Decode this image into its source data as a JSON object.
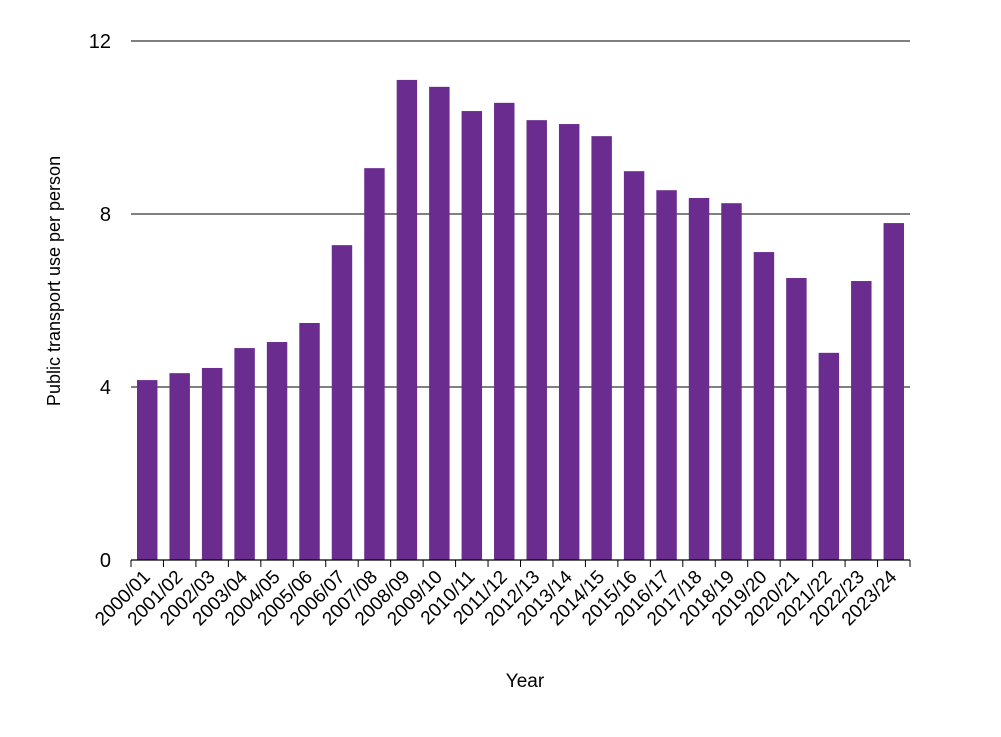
{
  "chart_data": {
    "type": "bar",
    "title": "",
    "xlabel": "Year",
    "ylabel": "Public transport use per person",
    "ylim": [
      0,
      12
    ],
    "yticks": [
      0,
      4,
      8,
      12
    ],
    "grid": true,
    "legend": null,
    "bar_color": "#6a2c8e",
    "categories": [
      "2000/01",
      "2001/02",
      "2002/03",
      "2003/04",
      "2004/05",
      "2005/06",
      "2006/07",
      "2007/08",
      "2008/09",
      "2009/10",
      "2010/11",
      "2011/12",
      "2012/13",
      "2013/14",
      "2014/15",
      "2015/16",
      "2016/17",
      "2017/18",
      "2018/19",
      "2019/20",
      "2020/21",
      "2021/22",
      "2022/23",
      "2023/24"
    ],
    "values": [
      4.16,
      4.32,
      4.44,
      4.9,
      5.04,
      5.48,
      7.28,
      9.06,
      11.1,
      10.94,
      10.38,
      10.57,
      10.17,
      10.08,
      9.8,
      8.99,
      8.55,
      8.37,
      8.25,
      7.12,
      6.52,
      4.79,
      6.45,
      7.79
    ]
  }
}
